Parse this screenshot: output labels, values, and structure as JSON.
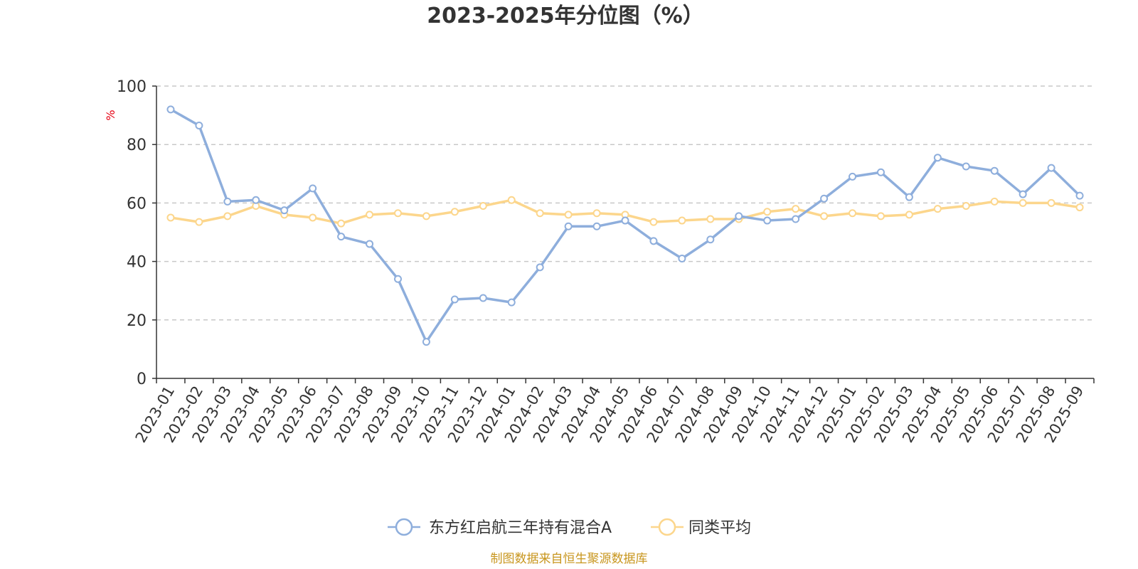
{
  "chart_data": {
    "type": "line",
    "title": "2023-2025年分位图（%）",
    "ylabel": "%",
    "xlabel": "",
    "ylim": [
      0,
      100
    ],
    "yticks": [
      0,
      20,
      40,
      60,
      80,
      100
    ],
    "grid": true,
    "legend_position": "bottom-center",
    "categories": [
      "2023-01",
      "2023-02",
      "2023-03",
      "2023-04",
      "2023-05",
      "2023-06",
      "2023-07",
      "2023-08",
      "2023-09",
      "2023-10",
      "2023-11",
      "2023-12",
      "2024-01",
      "2024-02",
      "2024-03",
      "2024-04",
      "2024-05",
      "2024-06",
      "2024-07",
      "2024-08",
      "2024-09",
      "2024-10",
      "2024-11",
      "2024-12",
      "2025-01",
      "2025-02",
      "2025-03",
      "2025-04",
      "2025-05",
      "2025-06",
      "2025-07",
      "2025-08",
      "2025-09"
    ],
    "series": [
      {
        "name": "东方红启航三年持有混合A",
        "color": "#8eaedc",
        "values": [
          92,
          86.5,
          60.5,
          61,
          57.5,
          65,
          48.5,
          46,
          34,
          12.5,
          27,
          27.5,
          26,
          38,
          52,
          52,
          54,
          47,
          41,
          47.5,
          55.5,
          54,
          54.5,
          61.5,
          69,
          70.5,
          62,
          75.5,
          72.5,
          71,
          63,
          72,
          62.5
        ]
      },
      {
        "name": "同类平均",
        "color": "#fcd68c",
        "values": [
          55,
          53.5,
          55.5,
          59,
          56,
          55,
          53,
          56,
          56.5,
          55.5,
          57,
          59,
          61,
          56.5,
          56,
          56.5,
          56,
          53.5,
          54,
          54.5,
          54.5,
          57,
          58,
          55.5,
          56.5,
          55.5,
          56,
          58,
          59,
          60.5,
          60,
          60,
          58.5
        ]
      }
    ]
  },
  "source_note": "制图数据来自恒生聚源数据库"
}
